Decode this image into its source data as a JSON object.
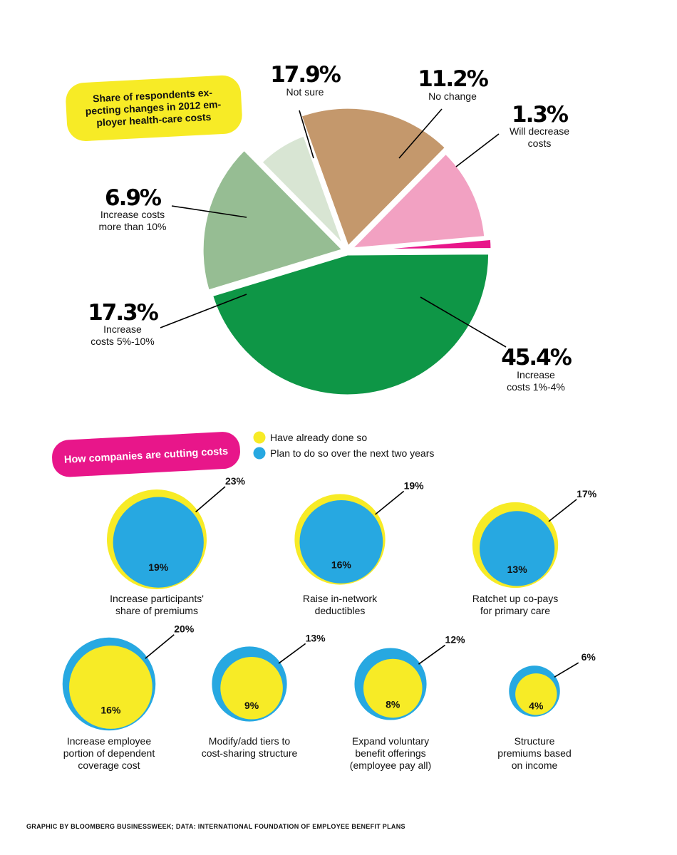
{
  "chart_data": [
    {
      "type": "pie",
      "title": "Share of respondents expecting changes in 2012 employer health-care costs",
      "title_lines": [
        "Share of respondents ex-",
        "pecting changes in 2012 em-",
        "ployer health-care costs"
      ],
      "slices": [
        {
          "label": "Not sure",
          "label_lines": [
            "Not sure"
          ],
          "value": 17.9,
          "display": "17.9%",
          "color": "#c4986c"
        },
        {
          "label": "No change",
          "label_lines": [
            "No change"
          ],
          "value": 11.2,
          "display": "11.2%",
          "color": "#f2a1c2"
        },
        {
          "label": "Will decrease costs",
          "label_lines": [
            "Will decrease",
            "costs"
          ],
          "value": 1.3,
          "display": "1.3%",
          "color": "#e8168a"
        },
        {
          "label": "Increase costs 1%-4%",
          "label_lines": [
            "Increase",
            "costs 1%-4%"
          ],
          "value": 45.4,
          "display": "45.4%",
          "color": "#0e9646"
        },
        {
          "label": "Increase costs 5%-10%",
          "label_lines": [
            "Increase",
            "costs 5%-10%"
          ],
          "value": 17.3,
          "display": "17.3%",
          "color": "#96bd93"
        },
        {
          "label": "Increase costs more than 10%",
          "label_lines": [
            "Increase costs",
            "more than 10%"
          ],
          "value": 6.9,
          "display": "6.9%",
          "color": "#d8e5d3"
        }
      ]
    },
    {
      "type": "bubble",
      "title": "How companies are cutting costs",
      "legend": [
        {
          "label": "Have already done so",
          "color": "#f7eb26"
        },
        {
          "label": "Plan to do so over the next two years",
          "color": "#27a8e1"
        }
      ],
      "items": [
        {
          "label": "Increase participants' share of premiums",
          "label_lines": [
            "Increase participants'",
            "share of premiums"
          ],
          "already": 23,
          "plan": 19,
          "already_label": "23%",
          "plan_label": "19%",
          "inner": "plan"
        },
        {
          "label": "Raise in-network deductibles",
          "label_lines": [
            "Raise in-network",
            "deductibles"
          ],
          "already": 19,
          "plan": 16,
          "already_label": "19%",
          "plan_label": "16%",
          "inner": "plan"
        },
        {
          "label": "Ratchet up co-pays for primary care",
          "label_lines": [
            "Ratchet up co-pays",
            "for primary care"
          ],
          "already": 17,
          "plan": 13,
          "already_label": "17%",
          "plan_label": "13%",
          "inner": "plan"
        },
        {
          "label": "Increase employee portion of dependent coverage cost",
          "label_lines": [
            "Increase employee",
            "portion of dependent",
            "coverage cost"
          ],
          "already": 16,
          "plan": 20,
          "already_label": "16%",
          "plan_label": "20%",
          "inner": "already"
        },
        {
          "label": "Modify/add tiers to cost-sharing structure",
          "label_lines": [
            "Modify/add tiers to",
            "cost-sharing structure"
          ],
          "already": 9,
          "plan": 13,
          "already_label": "9%",
          "plan_label": "13%",
          "inner": "already"
        },
        {
          "label": "Expand voluntary benefit offerings (employee pay all)",
          "label_lines": [
            "Expand voluntary",
            "benefit offerings",
            "(employee pay all)"
          ],
          "already": 8,
          "plan": 12,
          "already_label": "8%",
          "plan_label": "12%",
          "inner": "already"
        },
        {
          "label": "Structure premiums based on income",
          "label_lines": [
            "Structure",
            "premiums based",
            "on income"
          ],
          "already": 4,
          "plan": 6,
          "already_label": "4%",
          "plan_label": "6%",
          "inner": "already"
        }
      ]
    }
  ],
  "footer": {
    "credit": "GRAPHIC BY BLOOMBERG BUSINESSWEEK; DATA: INTERNATIONAL FOUNDATION OF EMPLOYEE BENEFIT PLANS"
  }
}
